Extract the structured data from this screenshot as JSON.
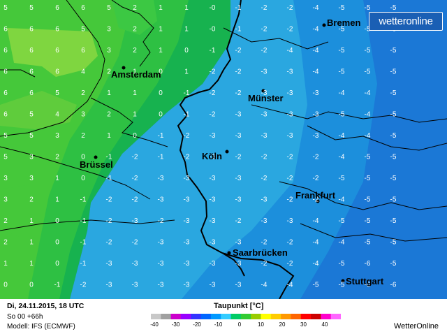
{
  "map": {
    "cities": [
      {
        "name": "Bremen"
      },
      {
        "name": "Amsterdam"
      },
      {
        "name": "Münster"
      },
      {
        "name": "Köln"
      },
      {
        "name": "Brüssel"
      },
      {
        "name": "Frankfurt"
      },
      {
        "name": "Saarbrücken"
      },
      {
        "name": "Stuttgart"
      }
    ],
    "grid_values": [
      [
        "5",
        "5",
        "6",
        "6",
        "5",
        "2",
        "1",
        "1",
        "-0",
        "-1",
        "-2",
        "-2",
        "-4",
        "-5",
        "-5",
        "-5"
      ],
      [
        "6",
        "6",
        "6",
        "5",
        "3",
        "2",
        "1",
        "1",
        "-0",
        "-1",
        "-2",
        "-2",
        "-4",
        "-5",
        "-5",
        "-5"
      ],
      [
        "6",
        "6",
        "6",
        "6",
        "3",
        "2",
        "1",
        "0",
        "-1",
        "-2",
        "-2",
        "-4",
        "-4",
        "-5",
        "-5",
        "-5"
      ],
      [
        "6",
        "6",
        "6",
        "4",
        "2",
        "1",
        "0",
        "1",
        "-2",
        "-2",
        "-3",
        "-3",
        "-4",
        "-5",
        "-5",
        "-5"
      ],
      [
        "6",
        "6",
        "5",
        "2",
        "1",
        "1",
        "0",
        "-1",
        "-2",
        "-2",
        "-3",
        "-3",
        "-3",
        "-4",
        "-4",
        "-5"
      ],
      [
        "6",
        "5",
        "4",
        "3",
        "2",
        "1",
        "0",
        "-1",
        "-2",
        "-3",
        "-3",
        "-3",
        "-3",
        "-5",
        "-4",
        "-5"
      ],
      [
        "5",
        "5",
        "3",
        "2",
        "1",
        "0",
        "-1",
        "-2",
        "-3",
        "-3",
        "-3",
        "-3",
        "-3",
        "-4",
        "-4",
        "-5"
      ],
      [
        "5",
        "3",
        "2",
        "0",
        "-1",
        "-2",
        "-1",
        "-2",
        "-3",
        "-2",
        "-2",
        "-2",
        "-2",
        "-4",
        "-5",
        "-5"
      ],
      [
        "3",
        "3",
        "1",
        "0",
        "-1",
        "-2",
        "-3",
        "-3",
        "-3",
        "-3",
        "-2",
        "-2",
        "-2",
        "-5",
        "-5",
        "-5"
      ],
      [
        "3",
        "2",
        "1",
        "-1",
        "-2",
        "-2",
        "-3",
        "-3",
        "-3",
        "-3",
        "-3",
        "-2",
        "-2",
        "-4",
        "-5",
        "-5"
      ],
      [
        "2",
        "1",
        "0",
        "-1",
        "-2",
        "-3",
        "-2",
        "-3",
        "-3",
        "-2",
        "-3",
        "-3",
        "-4",
        "-5",
        "-5",
        "-5"
      ],
      [
        "2",
        "1",
        "0",
        "-1",
        "-2",
        "-2",
        "-3",
        "-3",
        "-3",
        "-3",
        "-2",
        "-2",
        "-4",
        "-4",
        "-5",
        "-5"
      ],
      [
        "1",
        "1",
        "0",
        "-1",
        "-3",
        "-3",
        "-3",
        "-3",
        "-3",
        "-3",
        "-2",
        "-2",
        "-4",
        "-5",
        "-6",
        "-5"
      ],
      [
        "0",
        "0",
        "-1",
        "-2",
        "-3",
        "-3",
        "-3",
        "-3",
        "-3",
        "-3",
        "-4",
        "-4",
        "-5",
        "-5",
        "-6",
        "-6"
      ]
    ]
  },
  "footer": {
    "date": "Di, 24.11.2015, 18 UTC",
    "run": "So 00 +66h",
    "model": "Modell: IFS (ECMWF)",
    "title": "Taupunkt [°C]",
    "brand": "WetterOnline",
    "logo_text": "wetteronline",
    "scale_ticks": [
      "-40",
      "-30",
      "-20",
      "-10",
      "0",
      "10",
      "20",
      "30",
      "40"
    ],
    "scale_colors": [
      "#c8c8c8",
      "#a0a0a0",
      "#cc00cc",
      "#9900ff",
      "#3333ff",
      "#0066ff",
      "#0099ff",
      "#33ccff",
      "#00cc66",
      "#33cc33",
      "#99cc00",
      "#ffff00",
      "#ffcc00",
      "#ff9900",
      "#ff6600",
      "#ff0000",
      "#cc0000",
      "#ff00cc",
      "#ff66ff"
    ]
  }
}
